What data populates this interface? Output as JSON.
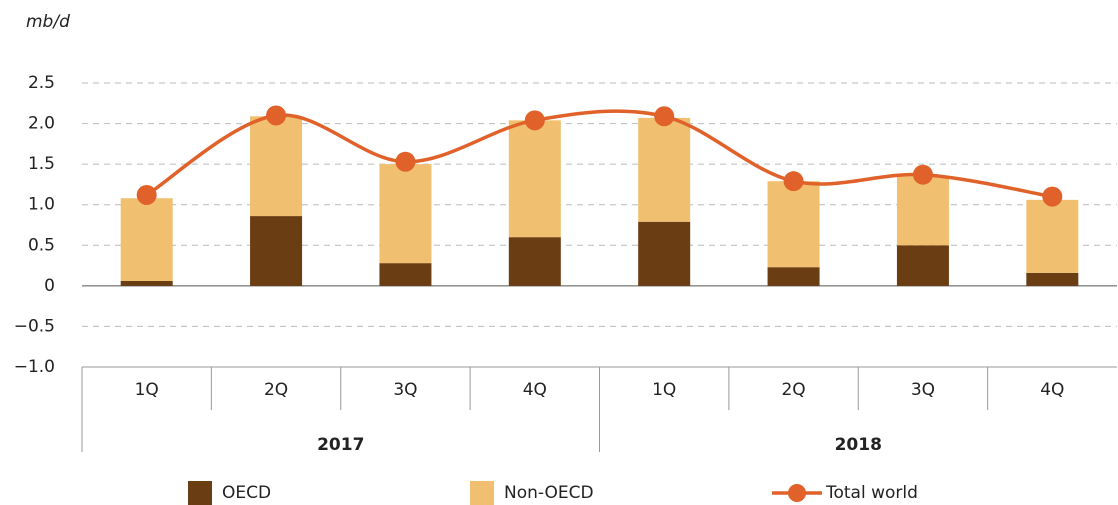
{
  "chart_data": {
    "type": "stacked-bar-line",
    "y_label": "mb/d",
    "categories": [
      "1Q",
      "2Q",
      "3Q",
      "4Q",
      "1Q",
      "2Q",
      "3Q",
      "4Q"
    ],
    "groups": [
      "2017",
      "2018"
    ],
    "series": [
      {
        "name": "OECD",
        "kind": "bar",
        "color": "#6b3d12",
        "values": [
          0.06,
          0.86,
          0.28,
          0.6,
          0.79,
          0.23,
          0.5,
          0.16
        ]
      },
      {
        "name": "Non-OECD",
        "kind": "bar",
        "color": "#f0c070",
        "values": [
          1.02,
          1.23,
          1.22,
          1.44,
          1.28,
          1.06,
          0.85,
          0.9
        ]
      },
      {
        "name": "Total world",
        "kind": "line",
        "color": "#e0622a",
        "values": [
          1.12,
          2.1,
          1.53,
          2.04,
          2.09,
          1.29,
          1.37,
          1.1
        ]
      }
    ],
    "ylim": [
      -1.0,
      2.5
    ],
    "yticks": [
      {
        "value": -1.0,
        "label": "−1.0"
      },
      {
        "value": -0.5,
        "label": "−0.5"
      },
      0,
      0.5,
      {
        "value": 1.0,
        "label": "1.0"
      },
      1.5,
      {
        "value": 2.0,
        "label": "2.0"
      },
      2.5
    ],
    "grid": true
  }
}
